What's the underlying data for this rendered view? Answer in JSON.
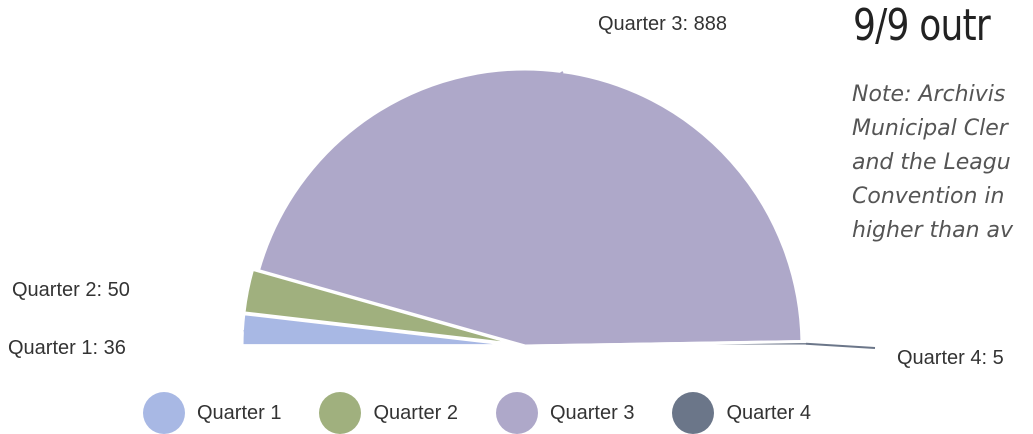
{
  "heading": {
    "title": "9/9 outr",
    "note": "Note: Archivis\nMunicipal Cler\nand the Leagu\nConvention in\nhigher than av"
  },
  "chart_data": {
    "type": "pie",
    "categories": [
      "Quarter 1",
      "Quarter 2",
      "Quarter 3",
      "Quarter 4"
    ],
    "values": [
      36,
      50,
      888,
      5
    ],
    "slice_labels": [
      "Quarter 1: 36",
      "Quarter 2: 50",
      "Quarter 3: 888",
      "Quarter 4: 5"
    ],
    "colors": [
      "#a8b8e4",
      "#a0b07e",
      "#aea8c9",
      "#6b7689"
    ],
    "legend": "bottom",
    "start_angle_deg": 0,
    "end_angle_deg": 180,
    "direction": "counterclockwise"
  }
}
